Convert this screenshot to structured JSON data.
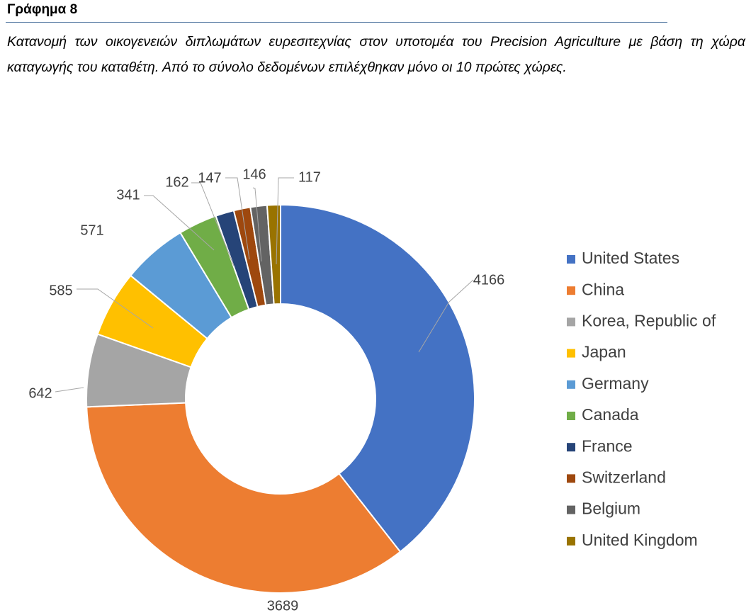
{
  "heading": "Γράφημα 8",
  "caption": "Κατανομή των οικογενειών διπλωμάτων ευρεσιτεχνίας στον υποτομέα του Precision Agriculture με βάση τη χώρα καταγωγής του καταθέτη. Από το σύνολο δεδομένων επιλέχθηκαν μόνο οι 10 πρώτες χώρες.",
  "chart_data": {
    "type": "pie",
    "variant": "doughnut",
    "categories": [
      "United States",
      "China",
      "Korea, Republic of",
      "Japan",
      "Germany",
      "Canada",
      "France",
      "Switzerland",
      "Belgium",
      "United Kingdom"
    ],
    "values": [
      4166,
      3689,
      642,
      585,
      571,
      341,
      162,
      147,
      146,
      117
    ],
    "colors": [
      "#4472c4",
      "#ed7d31",
      "#a5a5a5",
      "#ffc000",
      "#5b9bd5",
      "#70ad47",
      "#264478",
      "#9e480e",
      "#636363",
      "#997300"
    ],
    "data_labels": [
      "4166",
      "3689",
      "642",
      "585",
      "571",
      "341",
      "162",
      "147",
      "146",
      "117"
    ],
    "legend_position": "right",
    "start_angle": "top, clockwise"
  }
}
